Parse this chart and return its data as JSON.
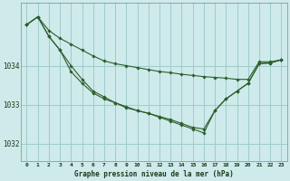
{
  "background_color": "#ceeaea",
  "grid_color": "#a0cccc",
  "line_color": "#2d5e2d",
  "marker_color": "#2d5e2d",
  "xlabel": "Graphe pression niveau de la mer (hPa)",
  "yticks": [
    1032,
    1033,
    1034
  ],
  "xticks": [
    0,
    1,
    2,
    3,
    4,
    5,
    6,
    7,
    8,
    9,
    10,
    11,
    12,
    13,
    14,
    15,
    16,
    17,
    18,
    19,
    20,
    21,
    22,
    23
  ],
  "xlim": [
    -0.5,
    23.5
  ],
  "ylim": [
    1031.55,
    1035.6
  ],
  "series": [
    [
      1035.05,
      1035.25,
      1034.9,
      1034.7,
      1034.55,
      1034.4,
      1034.25,
      1034.12,
      1034.05,
      1034.0,
      1033.95,
      1033.9,
      1033.85,
      1033.82,
      1033.78,
      1033.75,
      1033.72,
      1033.7,
      1033.68,
      1033.65,
      1033.65,
      1034.1,
      1034.1,
      1034.15
    ],
    [
      1035.05,
      1035.25,
      1034.75,
      1034.4,
      1034.0,
      1033.65,
      1033.35,
      1033.2,
      1033.05,
      1032.95,
      1032.85,
      1032.78,
      1032.7,
      1032.62,
      1032.52,
      1032.42,
      1032.38,
      1032.85,
      1033.15,
      1033.35,
      1033.55,
      1034.05,
      1034.07,
      1034.15
    ],
    [
      1035.05,
      1035.25,
      1034.75,
      1034.4,
      1033.85,
      1033.55,
      1033.3,
      1033.15,
      1033.05,
      1032.92,
      1032.85,
      1032.78,
      1032.68,
      1032.58,
      1032.48,
      1032.38,
      1032.28,
      1032.85,
      1033.15,
      1033.35,
      1033.55,
      1034.05,
      1034.07,
      1034.15
    ]
  ]
}
